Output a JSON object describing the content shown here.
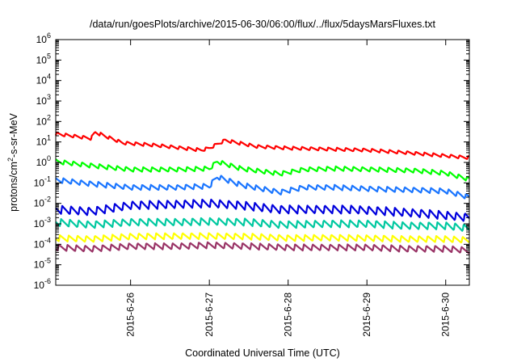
{
  "chart_data": {
    "type": "line",
    "title": "/data/run/goesPlots/archive/2015-06-30/06:00/flux/../flux/5daysMarsFluxes.txt",
    "xlabel": "Coordinated Universal Time (UTC)",
    "ylabel_prefix": "protons/cm",
    "ylabel_sup": "2",
    "ylabel_suffix": "-s-sr-MeV",
    "yscale": "log",
    "ylim_exp": [
      -6,
      6
    ],
    "xlim_days": [
      25.05,
      30.3
    ],
    "y_ticks": [
      {
        "base": "10",
        "exp": "-6"
      },
      {
        "base": "10",
        "exp": "-5"
      },
      {
        "base": "10",
        "exp": "-4"
      },
      {
        "base": "10",
        "exp": "-3"
      },
      {
        "base": "10",
        "exp": "-2"
      },
      {
        "base": "10",
        "exp": "-1"
      },
      {
        "base": "10",
        "exp": "0"
      },
      {
        "base": "10",
        "exp": "1"
      },
      {
        "base": "10",
        "exp": "2"
      },
      {
        "base": "10",
        "exp": "3"
      },
      {
        "base": "10",
        "exp": "4"
      },
      {
        "base": "10",
        "exp": "5"
      },
      {
        "base": "10",
        "exp": "6"
      }
    ],
    "x_ticks": [
      {
        "label": "2015-6-26",
        "day": 26
      },
      {
        "label": "2015-6-27",
        "day": 27
      },
      {
        "label": "2015-6-28",
        "day": 28
      },
      {
        "label": "2015-6-29",
        "day": 29
      },
      {
        "label": "2015-6-30",
        "day": 30
      }
    ],
    "grid": false,
    "legend": "none",
    "sawtooth_per_day": 9,
    "series": [
      {
        "color": "#ff0000",
        "peak_amplitude_log": 0.16,
        "x": [
          25.05,
          25.5,
          25.55,
          25.9,
          26.3,
          26.9,
          27.0,
          27.2,
          27.6,
          28.0,
          29.0,
          29.5,
          30.3
        ],
        "y": [
          25,
          15,
          30,
          9,
          7,
          4,
          5,
          12,
          6,
          5,
          4,
          3,
          1.7
        ]
      },
      {
        "color": "#00ff00",
        "peak_amplitude_log": 0.22,
        "x": [
          25.05,
          25.5,
          26.0,
          26.6,
          27.0,
          27.1,
          27.4,
          27.9,
          28.2,
          28.6,
          29.1,
          29.6,
          30.0,
          30.3
        ],
        "y": [
          1.1,
          0.7,
          0.45,
          0.45,
          0.5,
          1.1,
          0.5,
          0.28,
          0.45,
          0.5,
          0.45,
          0.4,
          0.3,
          0.15
        ]
      },
      {
        "color": "#1a75ff",
        "peak_amplitude_log": 0.25,
        "x": [
          25.05,
          25.5,
          26.0,
          26.6,
          27.0,
          27.1,
          27.4,
          27.9,
          28.2,
          28.6,
          29.1,
          29.6,
          30.0,
          30.3
        ],
        "y": [
          0.14,
          0.09,
          0.06,
          0.06,
          0.07,
          0.2,
          0.08,
          0.035,
          0.06,
          0.06,
          0.05,
          0.045,
          0.04,
          0.02
        ]
      },
      {
        "color": "#0000dd",
        "peak_amplitude_log": 0.4,
        "x": [
          25.05,
          25.5,
          26.0,
          26.6,
          27.0,
          27.4,
          27.9,
          28.3,
          28.8,
          29.3,
          29.8,
          30.3
        ],
        "y": [
          0.005,
          0.004,
          0.008,
          0.009,
          0.01,
          0.008,
          0.005,
          0.005,
          0.005,
          0.004,
          0.003,
          0.002
        ]
      },
      {
        "color": "#00c8a0",
        "peak_amplitude_log": 0.35,
        "x": [
          25.05,
          25.5,
          26.0,
          26.6,
          27.0,
          27.5,
          27.9,
          28.5,
          29.0,
          29.5,
          30.0,
          30.3
        ],
        "y": [
          0.0012,
          0.0009,
          0.0012,
          0.0012,
          0.0013,
          0.0012,
          0.0009,
          0.001,
          0.001,
          0.0008,
          0.0008,
          0.0006
        ]
      },
      {
        "color": "#ffff00",
        "peak_amplitude_log": 0.3,
        "x": [
          25.05,
          25.5,
          26.0,
          26.6,
          27.0,
          27.5,
          28.0,
          28.5,
          29.0,
          29.5,
          30.0,
          30.3
        ],
        "y": [
          0.0002,
          0.00018,
          0.00024,
          0.00025,
          0.00025,
          0.00024,
          0.0002,
          0.00021,
          0.0002,
          0.00018,
          0.00018,
          0.00016
        ]
      },
      {
        "color": "#993366",
        "peak_amplitude_log": 0.3,
        "x": [
          25.05,
          25.5,
          26.0,
          26.6,
          27.0,
          27.5,
          28.0,
          28.5,
          29.0,
          29.5,
          30.0,
          30.3
        ],
        "y": [
          7e-05,
          6e-05,
          8e-05,
          8e-05,
          9e-05,
          8e-05,
          7e-05,
          7e-05,
          7e-05,
          6e-05,
          6e-05,
          5e-05
        ]
      }
    ]
  }
}
